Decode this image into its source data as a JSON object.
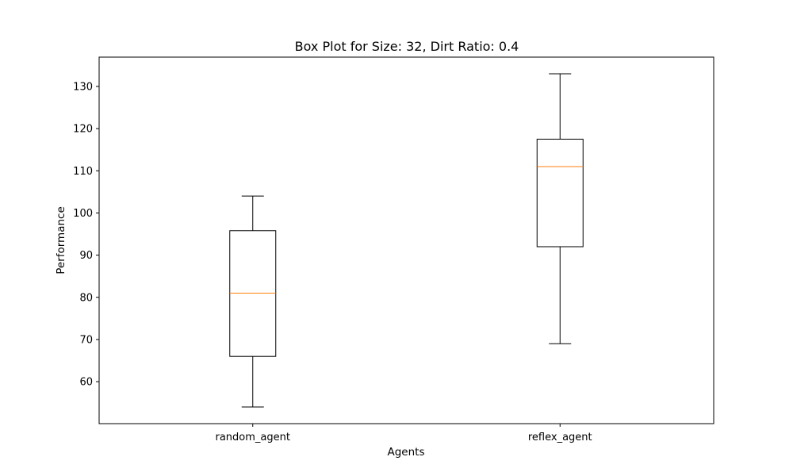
{
  "chart_data": {
    "type": "box",
    "title": "Box Plot for Size: 32, Dirt Ratio: 0.4",
    "xlabel": "Agents",
    "ylabel": "Performance",
    "categories": [
      "random_agent",
      "reflex_agent"
    ],
    "boxes": [
      {
        "name": "random_agent",
        "whisker_low": 54,
        "q1": 66,
        "median": 81,
        "q3": 95.8,
        "whisker_high": 104
      },
      {
        "name": "reflex_agent",
        "whisker_low": 69,
        "q1": 92,
        "median": 111,
        "q3": 117.5,
        "whisker_high": 133
      }
    ],
    "ylim": [
      50.05,
      136.95
    ],
    "yticks": [
      60,
      70,
      80,
      90,
      100,
      110,
      120,
      130
    ],
    "grid": false,
    "legend": "none",
    "colors": {
      "box": "#000000",
      "median": "#ff7f0e"
    }
  }
}
